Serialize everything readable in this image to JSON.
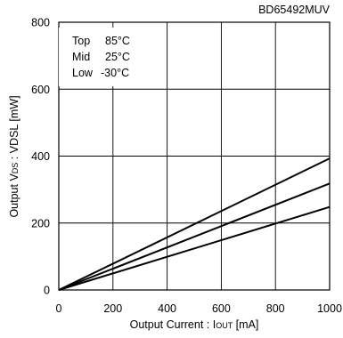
{
  "part_number": "BD65492MUV",
  "chart_data": {
    "type": "line",
    "xlabel": {
      "main": "Output Current : I",
      "sub": "OUT",
      "unit": " [mA]"
    },
    "ylabel": {
      "pre": "Output V",
      "sub": "DS",
      "post": " : VDSL [mW]"
    },
    "xlim": [
      0,
      1000
    ],
    "ylim": [
      0,
      800
    ],
    "x_ticks": [
      0,
      200,
      400,
      600,
      800,
      1000
    ],
    "y_ticks": [
      0,
      200,
      400,
      600,
      800
    ],
    "grid": true,
    "legend": {
      "placement": "top-left",
      "rows": [
        {
          "name": "Top",
          "value": "85°C"
        },
        {
          "name": "Mid",
          "value": "25°C"
        },
        {
          "name": "Low",
          "value": "-30°C"
        }
      ]
    },
    "series": [
      {
        "x": [
          0,
          1000
        ],
        "values": [
          0,
          393
        ]
      },
      {
        "x": [
          0,
          1000
        ],
        "values": [
          0,
          318
        ]
      },
      {
        "x": [
          0,
          1000
        ],
        "values": [
          0,
          248
        ]
      }
    ]
  }
}
